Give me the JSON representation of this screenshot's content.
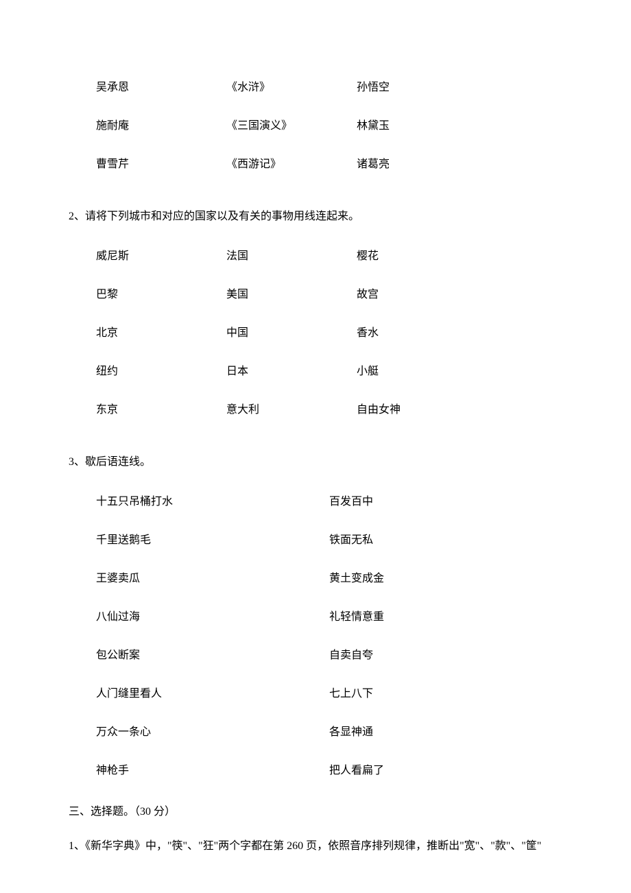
{
  "block1": {
    "rows": [
      {
        "a": "吴承恩",
        "b": "《水浒》",
        "c": "孙悟空"
      },
      {
        "a": "施耐庵",
        "b": "《三国演义》",
        "c": "林黛玉"
      },
      {
        "a": "曹雪芹",
        "b": "《西游记》",
        "c": "诸葛亮"
      }
    ]
  },
  "q2": {
    "prompt": "2、请将下列城市和对应的国家以及有关的事物用线连起来。",
    "rows": [
      {
        "a": "威尼斯",
        "b": "法国",
        "c": "樱花"
      },
      {
        "a": "巴黎",
        "b": "美国",
        "c": "故宫"
      },
      {
        "a": "北京",
        "b": "中国",
        "c": "香水"
      },
      {
        "a": "纽约",
        "b": "日本",
        "c": "小艇"
      },
      {
        "a": "东京",
        "b": "意大利",
        "c": "自由女神"
      }
    ]
  },
  "q3": {
    "prompt": "3、歇后语连线。",
    "rows": [
      {
        "a": "十五只吊桶打水",
        "b": "百发百中"
      },
      {
        "a": "千里送鹅毛",
        "b": "铁面无私"
      },
      {
        "a": "王婆卖瓜",
        "b": "黄土变成金"
      },
      {
        "a": "八仙过海",
        "b": "礼轻情意重"
      },
      {
        "a": "包公断案",
        "b": "自卖自夸"
      },
      {
        "a": "人门缝里看人",
        "b": "七上八下"
      },
      {
        "a": "万众一条心",
        "b": "各显神通"
      },
      {
        "a": "神枪手",
        "b": "把人看扁了"
      }
    ]
  },
  "section3": {
    "heading": "三、选择题。（30 分）",
    "q1": "1、《新华字典》中，\"筷\"、\"狂\"两个字都在第 260 页，依照音序排列规律，推断出\"宽\"、\"款\"、\"筐\""
  }
}
